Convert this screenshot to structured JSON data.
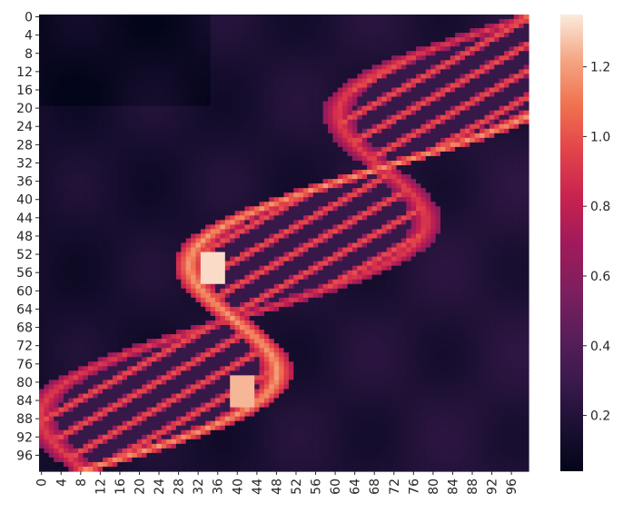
{
  "chart_data": {
    "type": "heatmap",
    "title": "",
    "xlabel": "",
    "ylabel": "",
    "grid": false,
    "rows": 100,
    "cols": 100,
    "x_tick_labels": [
      "0",
      "4",
      "8",
      "12",
      "16",
      "20",
      "24",
      "28",
      "32",
      "36",
      "40",
      "44",
      "48",
      "52",
      "56",
      "60",
      "64",
      "68",
      "72",
      "76",
      "80",
      "84",
      "88",
      "92",
      "96"
    ],
    "y_tick_labels": [
      "0",
      "4",
      "8",
      "12",
      "16",
      "20",
      "24",
      "28",
      "32",
      "36",
      "40",
      "44",
      "48",
      "52",
      "56",
      "60",
      "64",
      "68",
      "72",
      "76",
      "80",
      "84",
      "88",
      "92",
      "96"
    ],
    "colormap": "rocket",
    "colorbar": {
      "vmin": 0.04,
      "vmax": 1.35,
      "ticks": [
        0.2,
        0.4,
        0.6,
        0.8,
        1.0,
        1.2
      ],
      "tick_labels": [
        "0.2",
        "0.4",
        "0.6",
        "0.8",
        "1.0",
        "1.2"
      ]
    },
    "value_range": [
      0.04,
      1.35
    ],
    "description_of_values": "DNA double-helix image intensities; dark background (~0.1-0.3), bright helix strands (~0.8-1.35)"
  }
}
